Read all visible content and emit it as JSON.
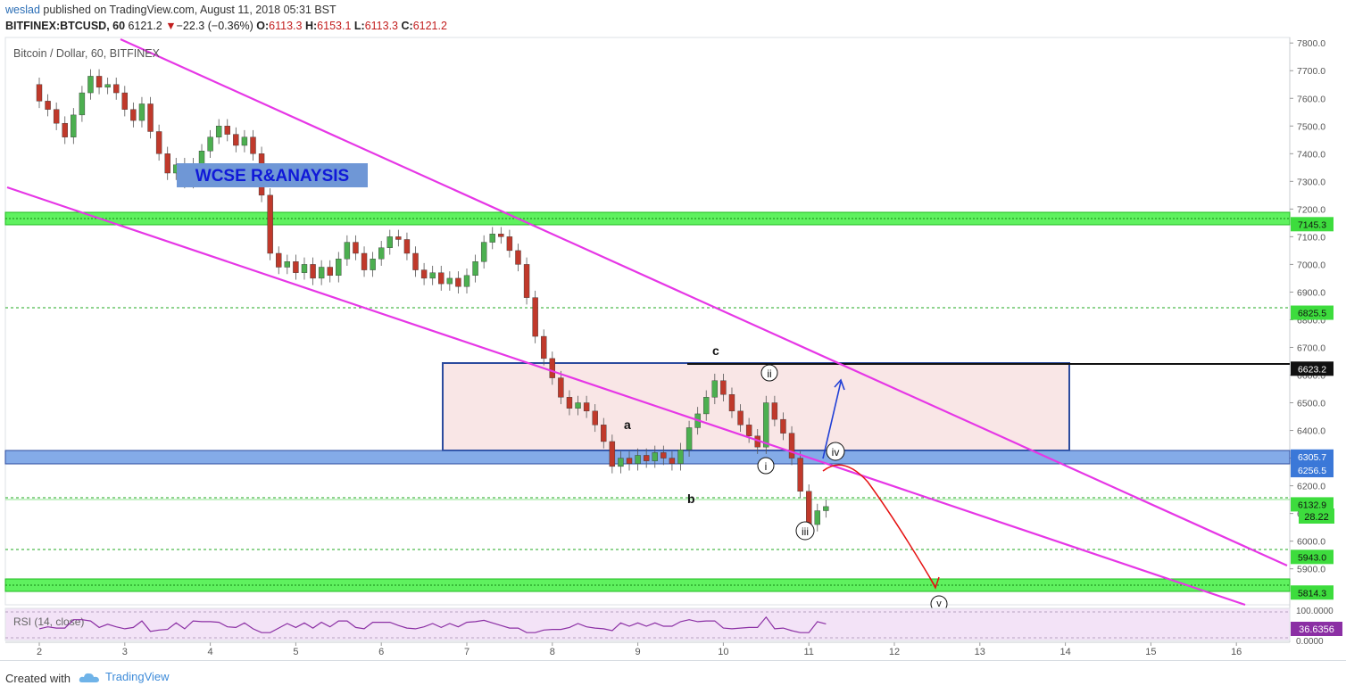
{
  "header": {
    "user": "weslad",
    "published_text": " published on TradingView.com, August 11, 2018 05:31 BST",
    "symbol": "BITFINEX:BTCUSD, 60",
    "last": "6121.2",
    "change_arrow": "▼",
    "change": "−22.3 (−0.36%)",
    "o_label": "O:",
    "o_value": "6113.3",
    "h_label": "H:",
    "h_value": "6153.1",
    "l_label": "L:",
    "l_value": "6113.3",
    "c_label": "C:",
    "c_value": "6121.2"
  },
  "footer": {
    "created_with": "Created with",
    "brand": "TradingView"
  },
  "chart_data": {
    "type": "candlestick",
    "title": "Bitcoin / Dollar, 60, BITFINEX",
    "annotation_box": "WCSE R&ANAYSIS",
    "x_ticks": [
      "2",
      "3",
      "4",
      "5",
      "6",
      "7",
      "8",
      "9",
      "10",
      "11",
      "12",
      "13",
      "14",
      "15",
      "16"
    ],
    "y_ticks": [
      5900,
      6000,
      6100,
      6200,
      6300,
      6400,
      6500,
      6600,
      6700,
      6800,
      6900,
      7000,
      7100,
      7200,
      7300,
      7400,
      7500,
      7600,
      7700,
      7800
    ],
    "ylim": [
      5770,
      7820
    ],
    "price_labels": [
      {
        "value": 7145.3,
        "text": "7145.3",
        "bg": "#3ddc3d"
      },
      {
        "value": 6825.5,
        "text": "6825.5",
        "bg": "#3ddc3d"
      },
      {
        "value": 6623.2,
        "text": "6623.2",
        "bg": "#111111"
      },
      {
        "value": 6305.7,
        "text": "6305.7",
        "bg": "#3b78d8"
      },
      {
        "value": 6256.5,
        "text": "6256.5",
        "bg": "#3b78d8"
      },
      {
        "value": 6132.9,
        "text": "6132.9",
        "bg": "#3ddc3d"
      },
      {
        "value": 5943.0,
        "text": "5943.0",
        "bg": "#3ddc3d"
      },
      {
        "value": 5814.3,
        "text": "5814.3",
        "bg": "#3ddc3d"
      }
    ],
    "current_label": "28.22",
    "wave_labels": [
      "a",
      "b",
      "c",
      "i",
      "ii",
      "iii",
      "iv",
      "v"
    ],
    "rsi": {
      "label": "RSI (14, close)",
      "value": "36.6356",
      "ticks": [
        "100.0000",
        "0.0000"
      ]
    },
    "candles": [
      [
        2.0,
        7650,
        7590
      ],
      [
        2.1,
        7590,
        7560
      ],
      [
        2.2,
        7560,
        7510
      ],
      [
        2.3,
        7510,
        7460
      ],
      [
        2.4,
        7460,
        7540
      ],
      [
        2.5,
        7540,
        7620
      ],
      [
        2.6,
        7620,
        7680
      ],
      [
        2.7,
        7680,
        7640
      ],
      [
        2.8,
        7640,
        7650
      ],
      [
        2.9,
        7650,
        7620
      ],
      [
        3.0,
        7620,
        7560
      ],
      [
        3.1,
        7560,
        7520
      ],
      [
        3.2,
        7520,
        7580
      ],
      [
        3.3,
        7580,
        7480
      ],
      [
        3.4,
        7480,
        7400
      ],
      [
        3.5,
        7400,
        7330
      ],
      [
        3.6,
        7330,
        7360
      ],
      [
        3.7,
        7360,
        7300
      ],
      [
        3.8,
        7300,
        7360
      ],
      [
        3.9,
        7360,
        7410
      ],
      [
        4.0,
        7410,
        7460
      ],
      [
        4.1,
        7460,
        7500
      ],
      [
        4.2,
        7500,
        7470
      ],
      [
        4.3,
        7470,
        7430
      ],
      [
        4.4,
        7430,
        7460
      ],
      [
        4.5,
        7460,
        7400
      ],
      [
        4.6,
        7400,
        7250
      ],
      [
        4.7,
        7250,
        7040
      ],
      [
        4.8,
        7040,
        6990
      ],
      [
        4.9,
        6990,
        7010
      ],
      [
        5.0,
        7010,
        6970
      ],
      [
        5.1,
        6970,
        7000
      ],
      [
        5.2,
        7000,
        6950
      ],
      [
        5.3,
        6950,
        6990
      ],
      [
        5.4,
        6990,
        6960
      ],
      [
        5.5,
        6960,
        7020
      ],
      [
        5.6,
        7020,
        7080
      ],
      [
        5.7,
        7080,
        7040
      ],
      [
        5.8,
        7040,
        6980
      ],
      [
        5.9,
        6980,
        7020
      ],
      [
        6.0,
        7020,
        7060
      ],
      [
        6.1,
        7060,
        7100
      ],
      [
        6.2,
        7100,
        7090
      ],
      [
        6.3,
        7090,
        7040
      ],
      [
        6.4,
        7040,
        6980
      ],
      [
        6.5,
        6980,
        6950
      ],
      [
        6.6,
        6950,
        6970
      ],
      [
        6.7,
        6970,
        6930
      ],
      [
        6.8,
        6930,
        6950
      ],
      [
        6.9,
        6950,
        6920
      ],
      [
        7.0,
        6920,
        6960
      ],
      [
        7.1,
        6960,
        7010
      ],
      [
        7.2,
        7010,
        7080
      ],
      [
        7.3,
        7080,
        7110
      ],
      [
        7.4,
        7110,
        7100
      ],
      [
        7.5,
        7100,
        7050
      ],
      [
        7.6,
        7050,
        7000
      ],
      [
        7.7,
        7000,
        6880
      ],
      [
        7.8,
        6880,
        6740
      ],
      [
        7.9,
        6740,
        6660
      ],
      [
        8.0,
        6660,
        6590
      ],
      [
        8.1,
        6590,
        6520
      ],
      [
        8.2,
        6520,
        6480
      ],
      [
        8.3,
        6480,
        6500
      ],
      [
        8.4,
        6500,
        6470
      ],
      [
        8.5,
        6470,
        6420
      ],
      [
        8.6,
        6420,
        6360
      ],
      [
        8.7,
        6360,
        6270
      ],
      [
        8.8,
        6270,
        6300
      ],
      [
        8.9,
        6300,
        6280
      ],
      [
        9.0,
        6280,
        6310
      ],
      [
        9.1,
        6310,
        6290
      ],
      [
        9.2,
        6290,
        6320
      ],
      [
        9.3,
        6320,
        6300
      ],
      [
        9.4,
        6300,
        6280
      ],
      [
        9.5,
        6280,
        6330
      ],
      [
        9.6,
        6330,
        6410
      ],
      [
        9.7,
        6410,
        6460
      ],
      [
        9.8,
        6460,
        6520
      ],
      [
        9.9,
        6520,
        6580
      ],
      [
        10.0,
        6580,
        6530
      ],
      [
        10.1,
        6530,
        6470
      ],
      [
        10.2,
        6470,
        6420
      ],
      [
        10.3,
        6420,
        6380
      ],
      [
        10.4,
        6380,
        6340
      ],
      [
        10.5,
        6340,
        6500
      ],
      [
        10.6,
        6500,
        6440
      ],
      [
        10.7,
        6440,
        6390
      ],
      [
        10.8,
        6390,
        6300
      ],
      [
        10.9,
        6300,
        6180
      ],
      [
        11.0,
        6180,
        6060
      ],
      [
        11.1,
        6060,
        6110
      ],
      [
        11.2,
        6110,
        6125
      ]
    ]
  }
}
